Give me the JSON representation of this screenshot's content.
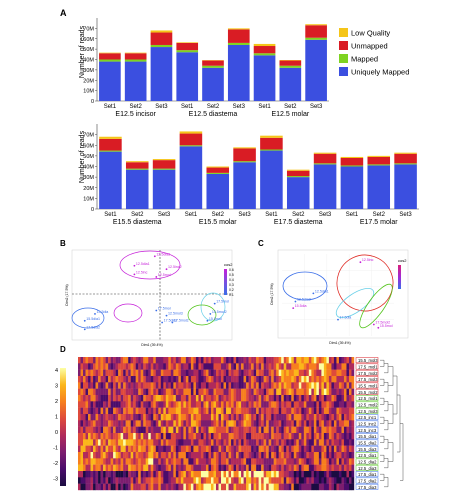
{
  "colors": {
    "uniquely_mapped": "#3b4fe0",
    "mapped": "#7ed321",
    "unmapped": "#d91c24",
    "low_quality": "#f5c518",
    "pca_magenta": "#c51ed8",
    "pca_blue": "#3a6ee8",
    "pca_green": "#52c41a",
    "pca_red": "#e0302a",
    "pca_cyan": "#6ad0e8"
  },
  "panels": {
    "a": "A",
    "b": "B",
    "c": "C",
    "d": "D"
  },
  "chart_data": [
    {
      "type": "bar",
      "stacked": true,
      "ylabel": "Number of reads",
      "ylim": [
        0,
        80
      ],
      "yticks": [
        "0",
        "10M",
        "20M",
        "30M",
        "40M",
        "50M",
        "60M",
        "70M"
      ],
      "categories": [
        "Set1",
        "Set2",
        "Set3",
        "Set1",
        "Set2",
        "Set3",
        "Set1",
        "Set2",
        "Set3"
      ],
      "groups": [
        "E12.5 incisor",
        "E12.5 diastema",
        "E12.5 molar"
      ],
      "legend_position": "right",
      "series": [
        {
          "name": "Uniquely Mapped",
          "values": [
            38,
            38,
            52,
            47,
            32,
            54,
            44,
            32,
            59
          ]
        },
        {
          "name": "Mapped",
          "values": [
            2,
            2,
            2,
            2,
            2,
            2,
            2,
            2,
            2
          ]
        },
        {
          "name": "Unmapped",
          "values": [
            6,
            6,
            12,
            7,
            5,
            13,
            7,
            5,
            12
          ]
        },
        {
          "name": "Low Quality",
          "values": [
            0.6,
            0.6,
            2,
            0.6,
            0.4,
            1,
            2,
            0.5,
            1
          ]
        }
      ]
    },
    {
      "type": "bar",
      "stacked": true,
      "ylabel": "Number of reads",
      "ylim": [
        0,
        80
      ],
      "yticks": [
        "0",
        "10M",
        "20M",
        "30M",
        "40M",
        "50M",
        "60M",
        "70M"
      ],
      "categories": [
        "Set1",
        "Set2",
        "Set3",
        "Set1",
        "Set2",
        "Set3",
        "Set1",
        "Set2",
        "Set3",
        "Set1",
        "Set2",
        "Set3"
      ],
      "groups": [
        "E15.5 diastema",
        "E15.5 molar",
        "E17.5 diastema",
        "E17.5 molar"
      ],
      "series": [
        {
          "name": "Uniquely Mapped",
          "values": [
            54,
            37,
            37,
            59,
            33,
            44,
            55,
            30,
            42,
            40,
            41,
            42
          ]
        },
        {
          "name": "Mapped",
          "values": [
            1,
            1,
            1,
            1,
            1,
            1,
            1,
            1,
            1,
            1,
            1,
            1
          ]
        },
        {
          "name": "Unmapped",
          "values": [
            11,
            6,
            8,
            11,
            5,
            12,
            11,
            5,
            9,
            7,
            7,
            9
          ]
        },
        {
          "name": "Low Quality",
          "values": [
            2,
            1,
            1,
            2,
            1,
            1,
            2,
            1,
            1,
            1,
            1,
            1
          ]
        }
      ]
    },
    {
      "type": "scatter",
      "xlabel": "Dim1 (39.4%)",
      "ylabel": "Dim2 (17.5%)",
      "legend_title": "cos2",
      "legend_ticks": [
        "0.6",
        "0.5",
        "0.4",
        "0.3",
        "0.2",
        "0.1"
      ],
      "points": [
        {
          "label": "12.5inc",
          "x": 0.4,
          "y": 0.74
        },
        {
          "label": "12.5dia1",
          "x": 0.4,
          "y": 0.84
        },
        {
          "label": "12.5dia3",
          "x": 0.54,
          "y": 0.95
        },
        {
          "label": "12.5inc2",
          "x": 0.62,
          "y": 0.8
        },
        {
          "label": "12.5mol",
          "x": 0.55,
          "y": 0.71
        },
        {
          "label": "15.5dia1",
          "x": 0.06,
          "y": 0.2
        },
        {
          "label": "17.5dia2",
          "x": 0.06,
          "y": 0.1
        },
        {
          "label": "15.5dia",
          "x": 0.13,
          "y": 0.28
        },
        {
          "label": "17.5mol",
          "x": 0.55,
          "y": 0.32
        },
        {
          "label": "12.5mol3",
          "x": 0.62,
          "y": 0.26
        },
        {
          "label": "17.5mol2",
          "x": 0.66,
          "y": 0.18
        },
        {
          "label": "17.5dia2",
          "x": 0.59,
          "y": 0.18
        },
        {
          "label": "17.5mol",
          "x": 0.95,
          "y": 0.4
        },
        {
          "label": "15.5mol2",
          "x": 0.92,
          "y": 0.28
        },
        {
          "label": "15.5mol",
          "x": 0.9,
          "y": 0.2
        }
      ]
    },
    {
      "type": "scatter",
      "xlabel": "Dim1 (39.4%)",
      "ylabel": "Dim2 (17.5%)",
      "legend_title": "cos2",
      "points": [
        {
          "label": "12.5inc",
          "x": 0.7,
          "y": 0.9
        },
        {
          "label": "12.5dia1",
          "x": 0.28,
          "y": 0.52
        },
        {
          "label": "12.5dia2",
          "x": 0.12,
          "y": 0.42
        },
        {
          "label": "15.5dia",
          "x": 0.1,
          "y": 0.34
        },
        {
          "label": "17.5dia",
          "x": 0.5,
          "y": 0.2
        },
        {
          "label": "15.5mol",
          "x": 0.86,
          "y": 0.1
        },
        {
          "label": "17.5mol2",
          "x": 0.82,
          "y": 0.14
        }
      ]
    },
    {
      "type": "heatmap",
      "colorbar_ticks": [
        "4",
        "3",
        "2",
        "1",
        "0",
        "-1",
        "-2",
        "-3"
      ],
      "rows": [
        "15.5_mol3",
        "17.5_mol1",
        "17.5_mol2",
        "17.5_mol3",
        "15.5_mol1",
        "15.5_mol2",
        "12.5_mol1",
        "12.5_mol2",
        "12.5_mol3",
        "12.5_inc1",
        "12.5_inc2",
        "12.5_inc3",
        "15.5_dia1",
        "15.5_dia2",
        "15.5_dia3",
        "12.5_dia1",
        "12.5_dia2",
        "12.5_dia3",
        "17.5_dia1",
        "17.5_dia2",
        "17.5_dia3"
      ]
    }
  ]
}
